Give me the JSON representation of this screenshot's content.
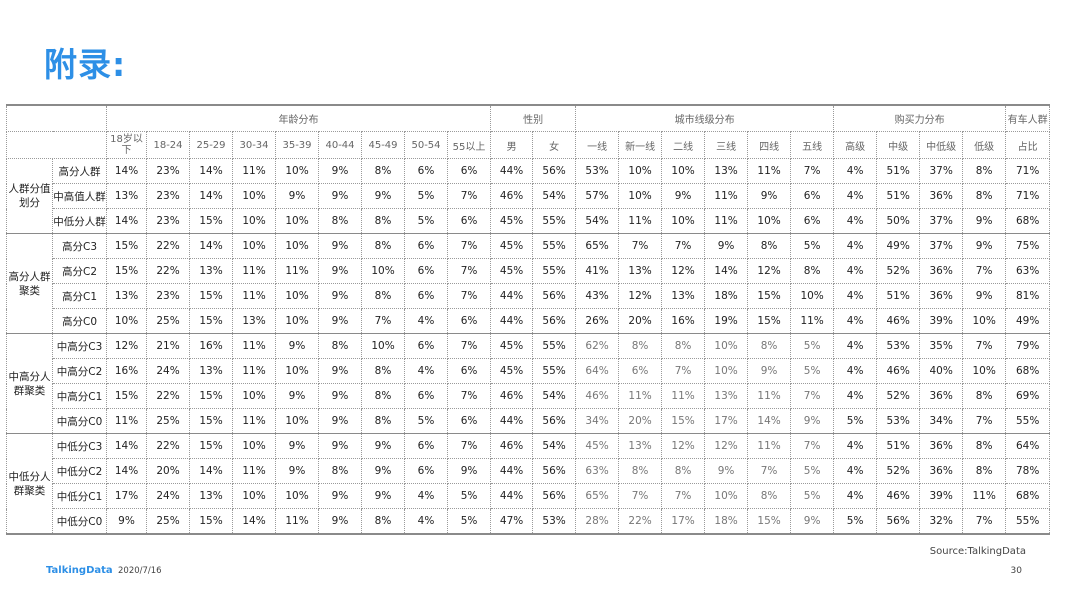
{
  "page": {
    "title": "附录:",
    "source": "Source:TalkingData",
    "logo": "TalkingData",
    "date": "2020/7/16",
    "page_number": "30"
  },
  "table": {
    "groups": [
      {
        "label": "年龄分布",
        "span": 9
      },
      {
        "label": "性别",
        "span": 2
      },
      {
        "label": "城市线级分布",
        "span": 6
      },
      {
        "label": "购买力分布",
        "span": 4
      },
      {
        "label": "有车人群",
        "span": 1
      }
    ],
    "columns": [
      "18岁以下",
      "18-24",
      "25-29",
      "30-34",
      "35-39",
      "40-44",
      "45-49",
      "50-54",
      "55以上",
      "男",
      "女",
      "一线",
      "新一线",
      "二线",
      "三线",
      "四线",
      "五线",
      "高级",
      "中级",
      "中低级",
      "低级",
      "占比"
    ],
    "sections": [
      {
        "label": "人群分值划分",
        "rows": [
          {
            "label": "高分人群",
            "values": [
              "14%",
              "23%",
              "14%",
              "11%",
              "10%",
              "9%",
              "8%",
              "6%",
              "6%",
              "44%",
              "56%",
              "53%",
              "10%",
              "10%",
              "13%",
              "11%",
              "7%",
              "4%",
              "51%",
              "37%",
              "8%",
              "71%"
            ]
          },
          {
            "label": "中高值人群",
            "values": [
              "13%",
              "23%",
              "14%",
              "10%",
              "9%",
              "9%",
              "9%",
              "5%",
              "7%",
              "46%",
              "54%",
              "57%",
              "10%",
              "9%",
              "11%",
              "9%",
              "6%",
              "4%",
              "51%",
              "36%",
              "8%",
              "71%"
            ]
          },
          {
            "label": "中低分人群",
            "values": [
              "14%",
              "23%",
              "15%",
              "10%",
              "10%",
              "8%",
              "8%",
              "5%",
              "6%",
              "45%",
              "55%",
              "54%",
              "11%",
              "10%",
              "11%",
              "10%",
              "6%",
              "4%",
              "50%",
              "37%",
              "9%",
              "68%"
            ]
          }
        ]
      },
      {
        "label": "高分人群聚类",
        "rows": [
          {
            "label": "高分C3",
            "values": [
              "15%",
              "22%",
              "14%",
              "10%",
              "10%",
              "9%",
              "8%",
              "6%",
              "7%",
              "45%",
              "55%",
              "65%",
              "7%",
              "7%",
              "9%",
              "8%",
              "5%",
              "4%",
              "49%",
              "37%",
              "9%",
              "75%"
            ]
          },
          {
            "label": "高分C2",
            "values": [
              "15%",
              "22%",
              "13%",
              "11%",
              "11%",
              "9%",
              "10%",
              "6%",
              "7%",
              "45%",
              "55%",
              "41%",
              "13%",
              "12%",
              "14%",
              "12%",
              "8%",
              "4%",
              "52%",
              "36%",
              "7%",
              "63%"
            ]
          },
          {
            "label": "高分C1",
            "values": [
              "13%",
              "23%",
              "15%",
              "11%",
              "10%",
              "9%",
              "8%",
              "6%",
              "7%",
              "44%",
              "56%",
              "43%",
              "12%",
              "13%",
              "18%",
              "15%",
              "10%",
              "4%",
              "51%",
              "36%",
              "9%",
              "81%"
            ]
          },
          {
            "label": "高分C0",
            "values": [
              "10%",
              "25%",
              "15%",
              "13%",
              "10%",
              "9%",
              "7%",
              "4%",
              "6%",
              "44%",
              "56%",
              "26%",
              "20%",
              "16%",
              "19%",
              "15%",
              "11%",
              "4%",
              "46%",
              "39%",
              "10%",
              "49%"
            ]
          }
        ]
      },
      {
        "label": "中高分人群聚类",
        "rows": [
          {
            "label": "中高分C3",
            "values": [
              "12%",
              "21%",
              "16%",
              "11%",
              "9%",
              "8%",
              "10%",
              "6%",
              "7%",
              "45%",
              "55%",
              "62%",
              "8%",
              "8%",
              "10%",
              "8%",
              "5%",
              "4%",
              "53%",
              "35%",
              "7%",
              "79%"
            ]
          },
          {
            "label": "中高分C2",
            "values": [
              "16%",
              "24%",
              "13%",
              "11%",
              "10%",
              "9%",
              "8%",
              "4%",
              "6%",
              "45%",
              "55%",
              "64%",
              "6%",
              "7%",
              "10%",
              "9%",
              "5%",
              "4%",
              "46%",
              "40%",
              "10%",
              "68%"
            ]
          },
          {
            "label": "中高分C1",
            "values": [
              "15%",
              "22%",
              "15%",
              "10%",
              "9%",
              "9%",
              "8%",
              "6%",
              "7%",
              "46%",
              "54%",
              "46%",
              "11%",
              "11%",
              "13%",
              "11%",
              "7%",
              "4%",
              "52%",
              "36%",
              "8%",
              "69%"
            ]
          },
          {
            "label": "中高分C0",
            "values": [
              "11%",
              "25%",
              "15%",
              "11%",
              "10%",
              "9%",
              "8%",
              "5%",
              "6%",
              "44%",
              "56%",
              "34%",
              "20%",
              "15%",
              "17%",
              "14%",
              "9%",
              "5%",
              "53%",
              "34%",
              "7%",
              "55%"
            ]
          }
        ]
      },
      {
        "label": "中低分人群聚类",
        "rows": [
          {
            "label": "中低分C3",
            "values": [
              "14%",
              "22%",
              "15%",
              "10%",
              "9%",
              "9%",
              "9%",
              "6%",
              "7%",
              "46%",
              "54%",
              "45%",
              "13%",
              "12%",
              "12%",
              "11%",
              "7%",
              "4%",
              "51%",
              "36%",
              "8%",
              "64%"
            ]
          },
          {
            "label": "中低分C2",
            "values": [
              "14%",
              "20%",
              "14%",
              "11%",
              "9%",
              "8%",
              "9%",
              "6%",
              "9%",
              "44%",
              "56%",
              "63%",
              "8%",
              "8%",
              "9%",
              "7%",
              "5%",
              "4%",
              "52%",
              "36%",
              "8%",
              "78%"
            ]
          },
          {
            "label": "中低分C1",
            "values": [
              "17%",
              "24%",
              "13%",
              "10%",
              "10%",
              "9%",
              "9%",
              "4%",
              "5%",
              "44%",
              "56%",
              "65%",
              "7%",
              "7%",
              "10%",
              "8%",
              "5%",
              "4%",
              "46%",
              "39%",
              "11%",
              "68%"
            ]
          },
          {
            "label": "中低分C0",
            "values": [
              "9%",
              "25%",
              "15%",
              "14%",
              "11%",
              "9%",
              "8%",
              "4%",
              "5%",
              "47%",
              "53%",
              "28%",
              "22%",
              "17%",
              "18%",
              "15%",
              "9%",
              "5%",
              "56%",
              "32%",
              "7%",
              "55%"
            ]
          }
        ]
      }
    ]
  }
}
